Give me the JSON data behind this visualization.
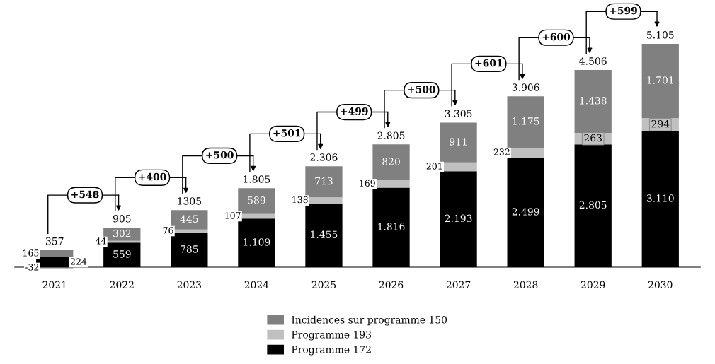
{
  "chart_data": {
    "type": "bar",
    "stacked": true,
    "categories": [
      "2021",
      "2022",
      "2023",
      "2024",
      "2025",
      "2026",
      "2027",
      "2028",
      "2029",
      "2030"
    ],
    "series": [
      {
        "name": "Programme 172",
        "color": "#000000",
        "values": [
          224,
          559,
          785,
          1109,
          1455,
          1816,
          2193,
          2499,
          2805,
          3110
        ],
        "value_labels": [
          "224",
          "559",
          "785",
          "1.109",
          "1.455",
          "1.816",
          "2.193",
          "2.499",
          "2.805",
          "3.110"
        ]
      },
      {
        "name": "Programme 193",
        "color": "#c0c0c0",
        "values": [
          -32,
          44,
          76,
          107,
          138,
          169,
          201,
          232,
          263,
          294
        ],
        "value_labels": [
          "-32",
          "44",
          "76",
          "107",
          "138",
          "169",
          "201",
          "232",
          "263",
          "294"
        ]
      },
      {
        "name": "Incidences sur programme 150",
        "color": "#808080",
        "values": [
          165,
          302,
          445,
          589,
          713,
          820,
          911,
          1175,
          1438,
          1701
        ],
        "value_labels": [
          "165",
          "302",
          "445",
          "589",
          "713",
          "820",
          "911",
          "1.175",
          "1.438",
          "1.701"
        ]
      }
    ],
    "totals": [
      "357",
      "905",
      "1305",
      "1.805",
      "2.306",
      "2.805",
      "3.305",
      "3.906",
      "4.506",
      "5.105"
    ],
    "annotations": [
      "+548",
      "+400",
      "+500",
      "+501",
      "+499",
      "+500",
      "+601",
      "+600",
      "+599"
    ],
    "legend": "bottom",
    "grid": false
  }
}
